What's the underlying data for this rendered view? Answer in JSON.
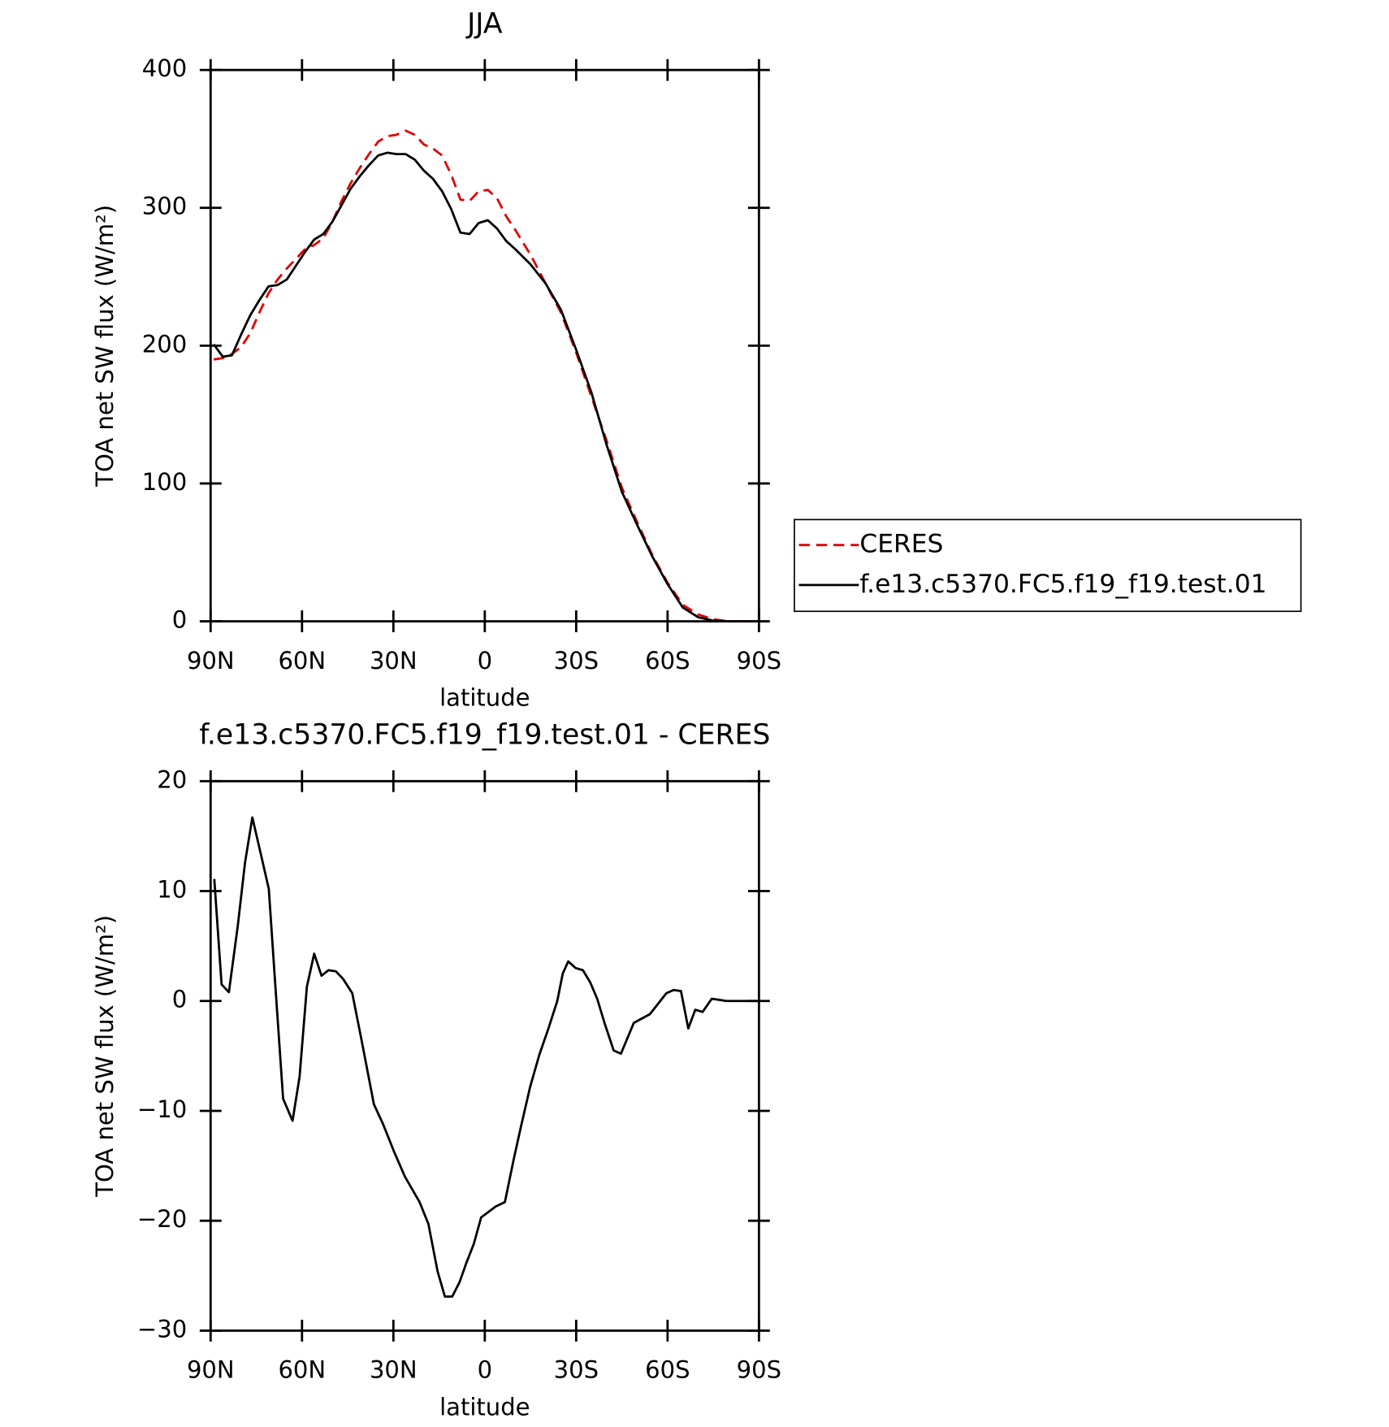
{
  "chart_data": [
    {
      "type": "line",
      "title": "JJA",
      "x_label": "latitude",
      "y_label": "TOA net SW flux (W/m²)",
      "x": [
        89,
        86,
        83,
        80,
        77,
        74,
        71,
        68,
        65,
        62,
        59,
        56,
        53,
        50,
        47,
        44,
        41,
        38,
        35,
        32,
        29,
        26,
        23,
        20,
        17,
        14,
        11,
        8,
        5,
        2,
        -1,
        -4,
        -7,
        -10,
        -15,
        -20,
        -25,
        -30,
        -35,
        -40,
        -45,
        -50,
        -55,
        -60,
        -65,
        -70,
        -75,
        -80,
        -85,
        -90
      ],
      "series": [
        {
          "name": "CERES",
          "color": "#e00000",
          "line_style": "dashed",
          "values": [
            190,
            191,
            194,
            199,
            209,
            224,
            238,
            248,
            256,
            263,
            270,
            273,
            278,
            290,
            305,
            318,
            329,
            339,
            348,
            352,
            353,
            356,
            353,
            346,
            343,
            338,
            324,
            306,
            305,
            312,
            313,
            307,
            294,
            284,
            266,
            245,
            224,
            195,
            163,
            131,
            97,
            72,
            48,
            28,
            12,
            5,
            1.5,
            0,
            0,
            0
          ]
        },
        {
          "name": "f.e13.c5370.FC5.f19_f19.test.01",
          "color": "#000000",
          "line_style": "solid",
          "values": [
            201,
            192,
            193,
            208,
            222,
            233,
            243,
            244,
            248,
            258,
            268,
            277,
            281,
            290,
            302,
            314,
            323,
            331,
            338,
            340,
            339,
            339,
            335,
            327,
            321,
            312,
            299,
            282,
            281,
            289,
            291,
            285,
            276,
            270,
            259,
            245,
            226,
            197,
            166,
            128,
            94,
            70,
            47,
            27,
            10,
            3,
            0.5,
            0,
            0,
            0
          ]
        }
      ],
      "xlim": [
        90,
        -90
      ],
      "xticks": [
        {
          "value": 90,
          "label": "90N"
        },
        {
          "value": 60,
          "label": "60N"
        },
        {
          "value": 30,
          "label": "30N"
        },
        0,
        {
          "value": -30,
          "label": "30S"
        },
        {
          "value": -60,
          "label": "60S"
        },
        {
          "value": -90,
          "label": "90S"
        }
      ],
      "ylim": [
        0,
        400
      ],
      "yticks": [
        0,
        100,
        200,
        300,
        400
      ],
      "legend": "right"
    },
    {
      "type": "line",
      "title": "f.e13.c5370.FC5.f19_f19.test.01 - CERES",
      "x_label": "latitude",
      "y_label": "TOA net SW flux (W/m²)",
      "x": [
        88.8,
        86.4,
        84,
        81.1,
        78.7,
        76.3,
        73.3,
        70.9,
        69.1,
        66.2,
        63.1,
        60.8,
        58.4,
        56,
        53.6,
        51.3,
        48.9,
        46.5,
        43.5,
        40.5,
        36.4,
        33.4,
        29.8,
        26.2,
        21.4,
        18.5,
        15.5,
        13.1,
        10.7,
        8.3,
        6,
        3.6,
        1.2,
        -3.6,
        -6.6,
        -9.5,
        -11.9,
        -14.9,
        -17.9,
        -20.9,
        -23.8,
        -25.6,
        -27.4,
        -29.8,
        -32.2,
        -34.6,
        -36.9,
        -39.3,
        -42.3,
        -44.7,
        -48.9,
        -54.2,
        -59.6,
        -62,
        -64.4,
        -66.8,
        -69.1,
        -71.5,
        -74.5,
        -79.3,
        -90
      ],
      "values": [
        11.1,
        1.5,
        0.8,
        6.8,
        12.6,
        16.7,
        13.1,
        10.2,
        2.8,
        -8.9,
        -10.9,
        -6.9,
        1.3,
        4.3,
        2.3,
        2.8,
        2.7,
        2,
        0.7,
        -3.5,
        -9.4,
        -11.2,
        -13.7,
        -16,
        -18.3,
        -20.3,
        -24.6,
        -26.9,
        -26.9,
        -25.6,
        -23.8,
        -22.1,
        -19.7,
        -18.7,
        -18.3,
        -14.4,
        -11.4,
        -7.8,
        -4.9,
        -2.5,
        0,
        2.5,
        3.6,
        3,
        2.8,
        1.7,
        0.2,
        -2,
        -4.5,
        -4.8,
        -2,
        -1.2,
        0.7,
        1,
        0.9,
        -2.5,
        -0.8,
        -1,
        0.2,
        0,
        0
      ],
      "color": "#000000",
      "xlim": [
        90,
        -90
      ],
      "xticks": [
        {
          "value": 90,
          "label": "90N"
        },
        {
          "value": 60,
          "label": "60N"
        },
        {
          "value": 30,
          "label": "30N"
        },
        0,
        {
          "value": -30,
          "label": "30S"
        },
        {
          "value": -60,
          "label": "60S"
        },
        {
          "value": -90,
          "label": "90S"
        }
      ],
      "ylim": [
        -30,
        20
      ],
      "yticks": [
        {
          "value": -30,
          "label": "−30"
        },
        {
          "value": -20,
          "label": "−20"
        },
        {
          "value": -10,
          "label": "−10"
        },
        0,
        10,
        20
      ]
    }
  ]
}
